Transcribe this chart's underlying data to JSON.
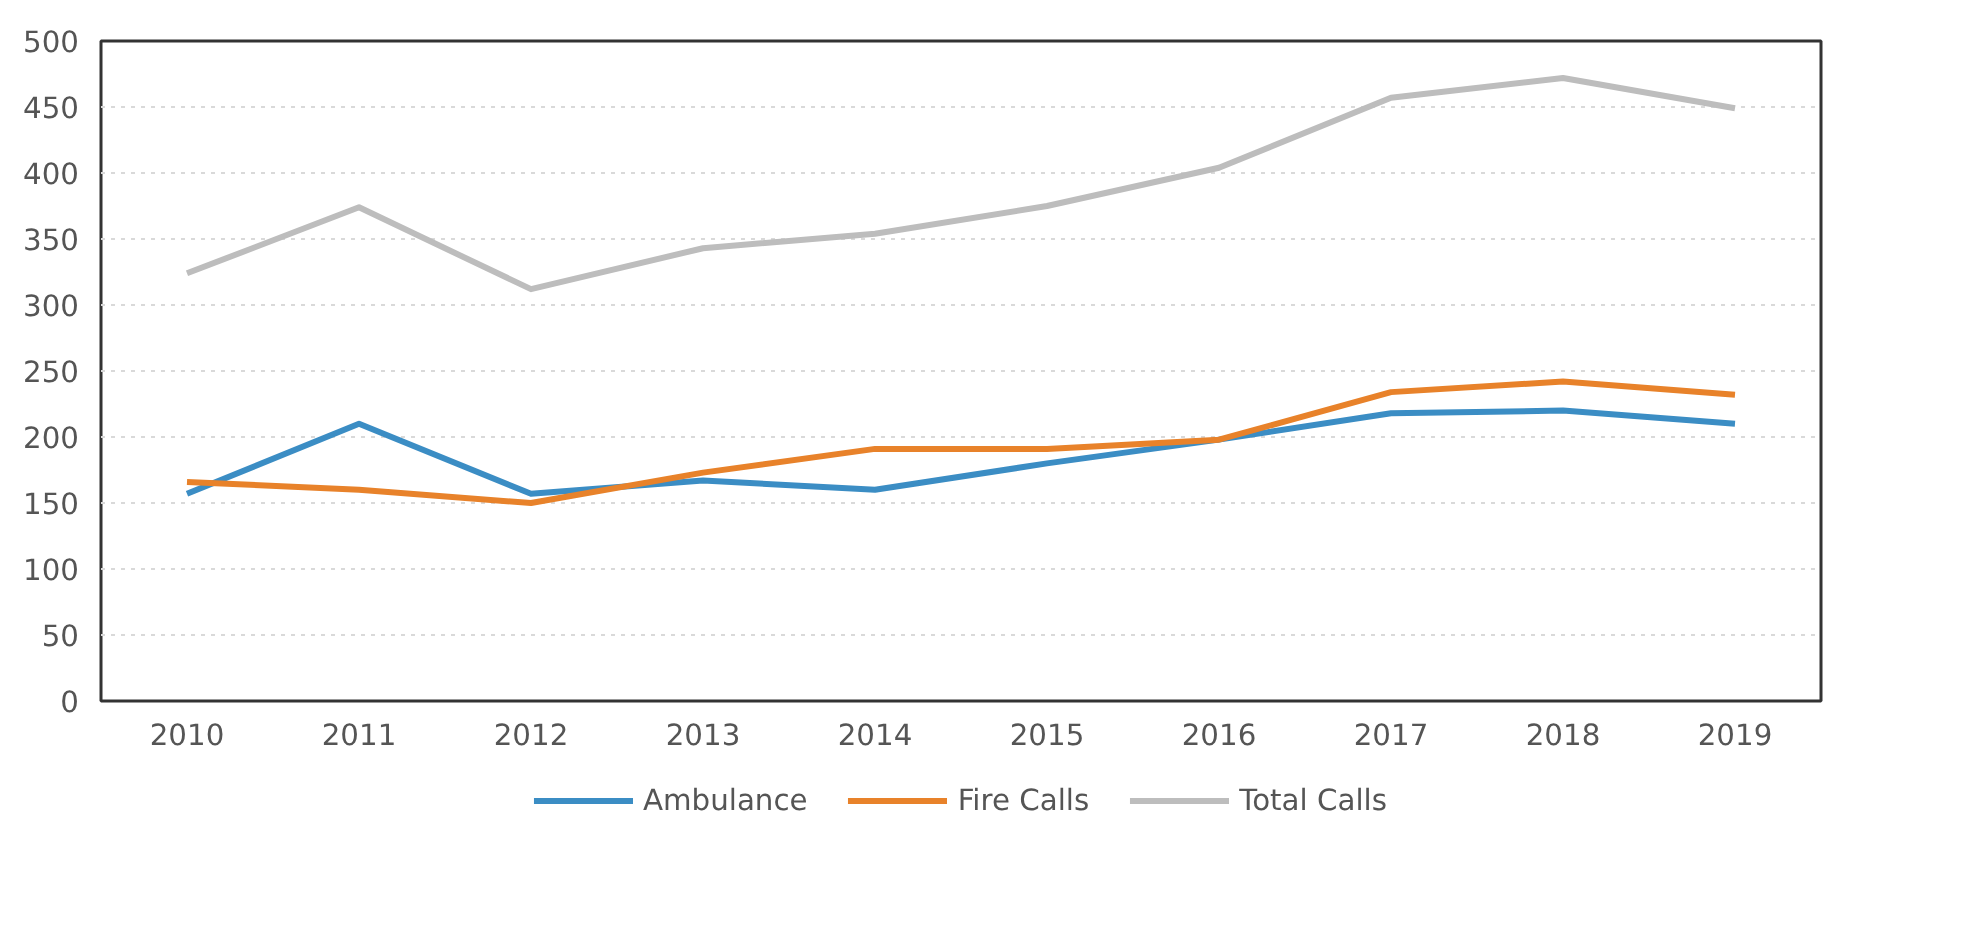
{
  "chart_data": {
    "type": "line",
    "categories": [
      "2010",
      "2011",
      "2012",
      "2013",
      "2014",
      "2015",
      "2016",
      "2017",
      "2018",
      "2019"
    ],
    "series": [
      {
        "name": "Ambulance",
        "color": "#3b8dc4",
        "values": [
          157,
          210,
          157,
          167,
          160,
          180,
          198,
          218,
          220,
          210
        ]
      },
      {
        "name": "Fire Calls",
        "color": "#e8822a",
        "values": [
          166,
          160,
          150,
          173,
          191,
          191,
          198,
          234,
          242,
          232
        ]
      },
      {
        "name": "Total Calls",
        "color": "#bdbdbd",
        "values": [
          324,
          374,
          312,
          343,
          354,
          375,
          404,
          457,
          472,
          449
        ]
      }
    ],
    "ylim": [
      0,
      500
    ],
    "yticks": [
      0,
      50,
      100,
      150,
      200,
      250,
      300,
      350,
      400,
      450,
      500
    ],
    "grid": "y",
    "legend": "bottom",
    "marker": "none",
    "line_style": "solid"
  }
}
